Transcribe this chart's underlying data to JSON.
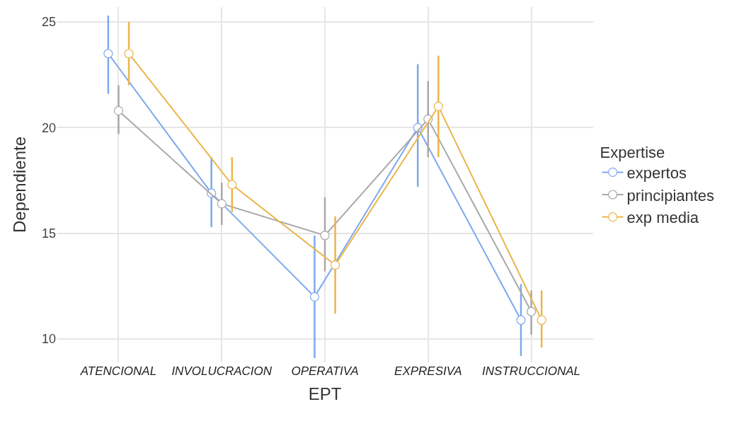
{
  "chart_data": {
    "type": "line",
    "xlabel": "EPT",
    "ylabel": "Dependiente",
    "legend_title": "Expertise",
    "categories": [
      "ATENCIONAL",
      "INVOLUCRACION",
      "OPERATIVA",
      "EXPRESIVA",
      "INSTRUCCIONAL"
    ],
    "series": [
      {
        "name": "expertos",
        "color": "#7ea8ef",
        "values": [
          23.5,
          16.9,
          12.0,
          20.0,
          10.9
        ],
        "errors": [
          [
            21.6,
            25.3
          ],
          [
            15.3,
            18.6
          ],
          [
            9.1,
            14.9
          ],
          [
            17.2,
            23.0
          ],
          [
            9.2,
            12.6
          ]
        ]
      },
      {
        "name": "principiantes",
        "color": "#a8a8a8",
        "values": [
          20.8,
          16.4,
          14.9,
          20.4,
          11.3
        ],
        "errors": [
          [
            19.7,
            22.0
          ],
          [
            15.4,
            17.4
          ],
          [
            13.2,
            16.7
          ],
          [
            18.6,
            22.2
          ],
          [
            10.2,
            12.3
          ]
        ]
      },
      {
        "name": "exp media",
        "color": "#ebb54a",
        "values": [
          23.5,
          17.3,
          13.5,
          21.0,
          10.9
        ],
        "errors": [
          [
            22.0,
            25.0
          ],
          [
            16.0,
            18.6
          ],
          [
            11.2,
            15.8
          ],
          [
            18.6,
            23.4
          ],
          [
            9.6,
            12.3
          ]
        ]
      }
    ],
    "ylim": [
      8.9,
      25.7
    ],
    "yticks": [
      10,
      15,
      20,
      25
    ],
    "grid": true,
    "legend": "right",
    "marker": "circle",
    "line_style": "solid"
  }
}
